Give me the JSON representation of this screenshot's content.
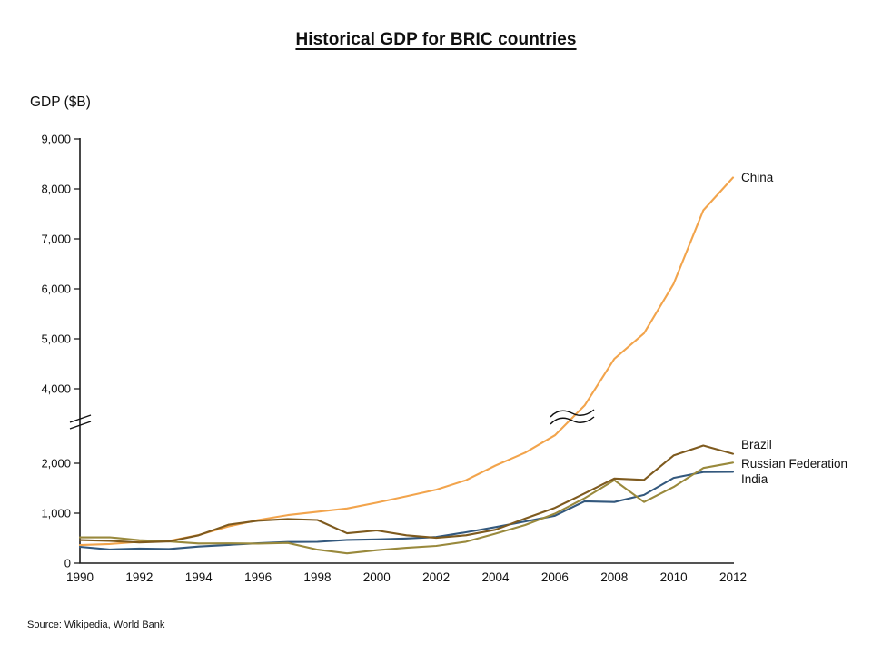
{
  "title": "Historical GDP for BRIC countries",
  "y_axis_title": "GDP ($B)",
  "source": "Source: Wikipedia, World Bank",
  "chart_data": {
    "type": "line",
    "title": "Historical GDP for BRIC countries",
    "ylabel": "GDP ($B)",
    "xlabel": "",
    "grid": false,
    "legend_position": "labels-at-line-ends",
    "x": [
      1990,
      1991,
      1992,
      1993,
      1994,
      1995,
      1996,
      1997,
      1998,
      1999,
      2000,
      2001,
      2002,
      2003,
      2004,
      2005,
      2006,
      2007,
      2008,
      2009,
      2010,
      2011,
      2012
    ],
    "x_tick_labels": [
      "1990",
      "1992",
      "1994",
      "1996",
      "1998",
      "2000",
      "2002",
      "2004",
      "2006",
      "2008",
      "2010",
      "2012"
    ],
    "y_ticks": [
      {
        "value": 0,
        "label": "0"
      },
      {
        "value": 1000,
        "label": "1,000"
      },
      {
        "value": 2000,
        "label": "2,000"
      },
      {
        "value": 4000,
        "label": "4,000"
      },
      {
        "value": 5000,
        "label": "5,000"
      },
      {
        "value": 6000,
        "label": "6,000"
      },
      {
        "value": 7000,
        "label": "7,000"
      },
      {
        "value": 8000,
        "label": "8,000"
      },
      {
        "value": 9000,
        "label": "9,000"
      }
    ],
    "ylim": [
      0,
      9000
    ],
    "axis_break": {
      "from": 2000,
      "to": 4000,
      "marks": [
        "y-axis",
        "china-line"
      ]
    },
    "series": [
      {
        "name": "China",
        "color": "#F2A44C",
        "values": [
          361,
          383,
          427,
          445,
          564,
          734,
          864,
          961,
          1029,
          1094,
          1211,
          1339,
          1471,
          1660,
          1955,
          2286,
          2752,
          3552,
          4598,
          5110,
          6101,
          7573,
          8227
        ]
      },
      {
        "name": "Brazil",
        "color": "#7E5A1E",
        "values": [
          462,
          445,
          415,
          435,
          558,
          769,
          850,
          883,
          864,
          599,
          655,
          559,
          508,
          558,
          669,
          892,
          1108,
          1397,
          1695,
          1667,
          2209,
          2476,
          2254
        ]
      },
      {
        "name": "Russian Federation",
        "color": "#99893C",
        "values": [
          517,
          518,
          460,
          435,
          395,
          396,
          392,
          405,
          271,
          196,
          260,
          307,
          345,
          430,
          591,
          764,
          990,
          1300,
          1661,
          1223,
          1525,
          1905,
          2017
        ]
      },
      {
        "name": "India",
        "color": "#33587D",
        "values": [
          327,
          275,
          293,
          284,
          333,
          366,
          399,
          423,
          428,
          466,
          477,
          494,
          524,
          618,
          722,
          834,
          949,
          1239,
          1224,
          1365,
          1708,
          1823,
          1828
        ]
      }
    ]
  }
}
